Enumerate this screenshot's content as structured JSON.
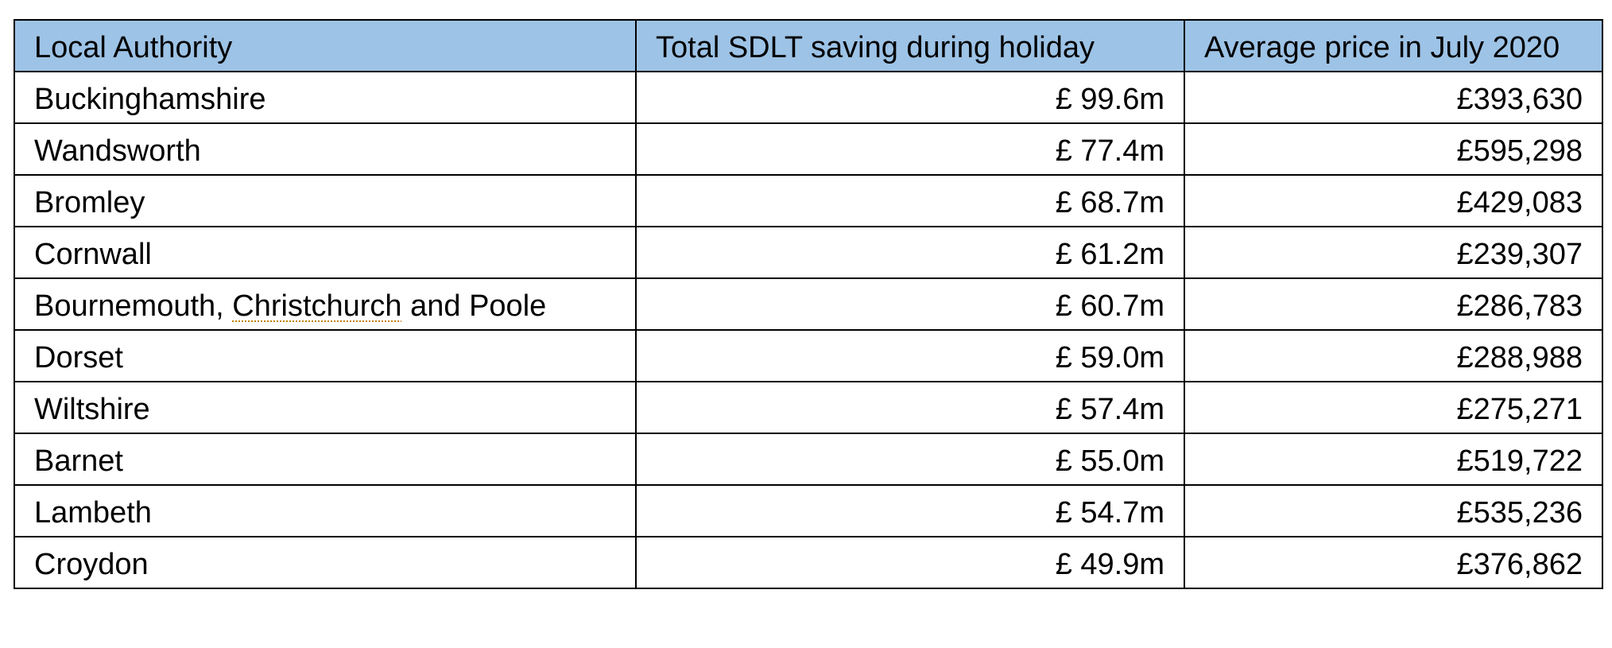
{
  "table": {
    "headers": [
      "Local Authority",
      "Total SDLT saving during holiday",
      "Average price in July 2020"
    ],
    "rows": [
      {
        "authority": "Buckinghamshire",
        "saving": "£ 99.6m",
        "price": "£393,630"
      },
      {
        "authority": "Wandsworth",
        "saving": "£ 77.4m",
        "price": "£595,298"
      },
      {
        "authority": "Bromley",
        "saving": "£ 68.7m",
        "price": "£429,083"
      },
      {
        "authority": "Cornwall",
        "saving": "£ 61.2m",
        "price": "£239,307"
      },
      {
        "authority_parts": [
          "Bournemouth, ",
          "Christchurch",
          " and Poole"
        ],
        "saving": "£ 60.7m",
        "price": "£286,783"
      },
      {
        "authority": "Dorset",
        "saving": "£ 59.0m",
        "price": "£288,988"
      },
      {
        "authority": "Wiltshire",
        "saving": "£ 57.4m",
        "price": "£275,271"
      },
      {
        "authority": "Barnet",
        "saving": "£ 55.0m",
        "price": "£519,722"
      },
      {
        "authority": "Lambeth",
        "saving": "£ 54.7m",
        "price": "£535,236"
      },
      {
        "authority": "Croydon",
        "saving": "£ 49.9m",
        "price": "£376,862"
      }
    ]
  },
  "colors": {
    "header_bg": "#9dc3e6",
    "border": "#000000",
    "spellcheck_underline": "#c08000"
  }
}
